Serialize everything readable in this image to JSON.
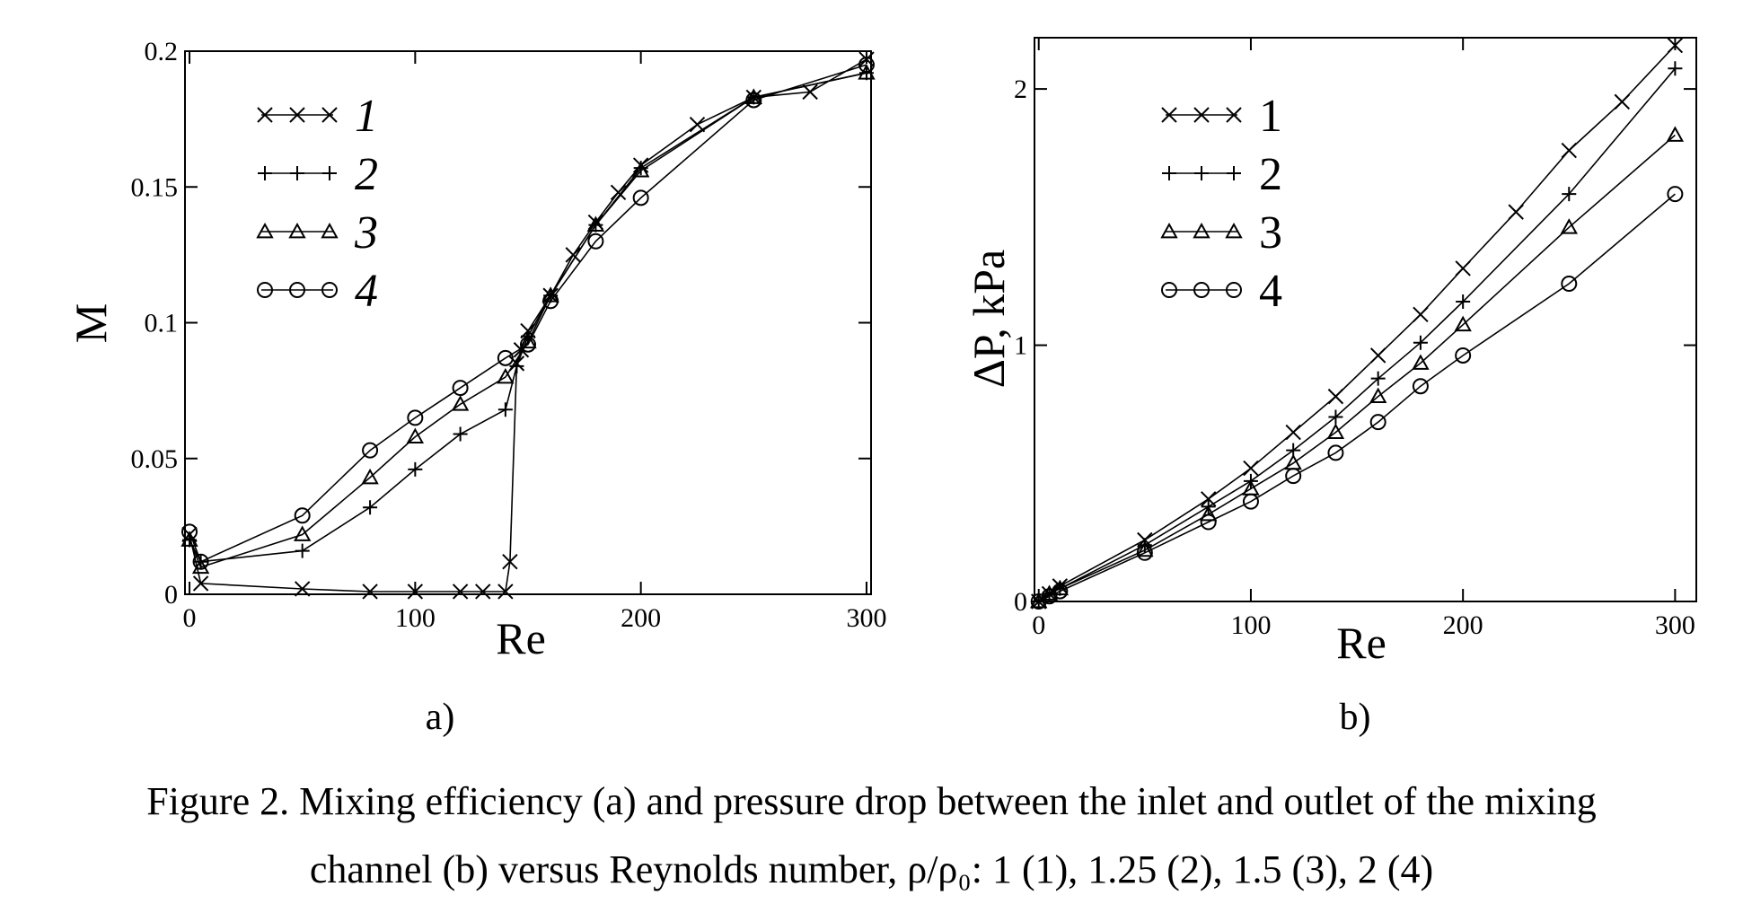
{
  "panel_labels": {
    "a": "a)",
    "b": "b)"
  },
  "caption": {
    "line1": "Figure 2. Mixing efficiency (a) and pressure drop between the inlet and outlet of the mixing",
    "line2": "channel (b) versus Reynolds number, ρ/ρ₀: 1 (1), 1.25 (2), 1.5 (3), 2 (4)"
  },
  "chart_data": [
    {
      "type": "line",
      "panel": "a",
      "title": "",
      "xlabel": "Re",
      "ylabel": "M",
      "xlim": [
        -2,
        302
      ],
      "ylim": [
        0,
        0.2
      ],
      "x_ticks": [
        0,
        100,
        200,
        300
      ],
      "x_tick_labels": [
        "0",
        "100",
        "200",
        "300"
      ],
      "y_ticks": [
        0,
        0.05,
        0.1,
        0.15,
        0.2
      ],
      "y_tick_labels": [
        "0",
        "0.05",
        "0.1",
        "0.15",
        "0.2"
      ],
      "grid": false,
      "legend_position": "top-left",
      "series": [
        {
          "name": "1",
          "marker": "x",
          "x": [
            0,
            5,
            50,
            80,
            100,
            120,
            130,
            140,
            142,
            145,
            147,
            150,
            160,
            170,
            180,
            190,
            200,
            225,
            250,
            275,
            300
          ],
          "y": [
            0.022,
            0.004,
            0.002,
            0.001,
            0.001,
            0.001,
            0.001,
            0.001,
            0.012,
            0.085,
            0.09,
            0.097,
            0.11,
            0.125,
            0.137,
            0.148,
            0.158,
            0.173,
            0.183,
            0.185,
            0.197
          ]
        },
        {
          "name": "2",
          "marker": "plus",
          "x": [
            0,
            5,
            50,
            80,
            100,
            120,
            140,
            145,
            150,
            160,
            180,
            200,
            250,
            300
          ],
          "y": [
            0.02,
            0.012,
            0.016,
            0.032,
            0.046,
            0.059,
            0.068,
            0.084,
            0.095,
            0.11,
            0.136,
            0.157,
            0.183,
            0.192
          ]
        },
        {
          "name": "3",
          "marker": "triangle",
          "x": [
            0,
            5,
            50,
            80,
            100,
            120,
            140,
            150,
            160,
            180,
            200,
            250,
            300
          ],
          "y": [
            0.02,
            0.01,
            0.022,
            0.043,
            0.058,
            0.07,
            0.08,
            0.093,
            0.11,
            0.136,
            0.156,
            0.183,
            0.192
          ]
        },
        {
          "name": "4",
          "marker": "circle",
          "x": [
            0,
            5,
            50,
            80,
            100,
            120,
            140,
            150,
            160,
            180,
            200,
            250,
            300
          ],
          "y": [
            0.023,
            0.012,
            0.029,
            0.053,
            0.065,
            0.076,
            0.087,
            0.092,
            0.108,
            0.13,
            0.146,
            0.182,
            0.195
          ]
        }
      ]
    },
    {
      "type": "line",
      "panel": "b",
      "title": "",
      "xlabel": "Re",
      "ylabel": "ΔP, kPa",
      "xlim": [
        -2,
        310
      ],
      "ylim": [
        0,
        2.2
      ],
      "x_ticks": [
        0,
        100,
        200,
        300
      ],
      "x_tick_labels": [
        "0",
        "100",
        "200",
        "300"
      ],
      "y_ticks": [
        0,
        1,
        2
      ],
      "y_tick_labels": [
        "0",
        "1",
        "2"
      ],
      "grid": false,
      "legend_position": "top-left",
      "series": [
        {
          "name": "1",
          "marker": "x",
          "x": [
            0,
            5,
            10,
            50,
            80,
            100,
            120,
            140,
            160,
            180,
            200,
            225,
            250,
            275,
            300
          ],
          "y": [
            0,
            0.03,
            0.06,
            0.24,
            0.4,
            0.52,
            0.66,
            0.8,
            0.96,
            1.12,
            1.3,
            1.52,
            1.76,
            1.95,
            2.17
          ]
        },
        {
          "name": "2",
          "marker": "plus",
          "x": [
            0,
            5,
            10,
            50,
            80,
            100,
            120,
            140,
            160,
            180,
            200,
            250,
            300
          ],
          "y": [
            0,
            0.03,
            0.05,
            0.22,
            0.37,
            0.47,
            0.59,
            0.72,
            0.87,
            1.01,
            1.17,
            1.59,
            2.08
          ]
        },
        {
          "name": "3",
          "marker": "triangle",
          "x": [
            0,
            5,
            10,
            50,
            80,
            100,
            120,
            140,
            160,
            180,
            200,
            250,
            300
          ],
          "y": [
            0,
            0.03,
            0.05,
            0.2,
            0.34,
            0.44,
            0.54,
            0.66,
            0.8,
            0.93,
            1.08,
            1.46,
            1.82
          ]
        },
        {
          "name": "4",
          "marker": "circle",
          "x": [
            0,
            5,
            10,
            50,
            80,
            100,
            120,
            140,
            160,
            180,
            200,
            250,
            300
          ],
          "y": [
            0,
            0.02,
            0.04,
            0.19,
            0.31,
            0.39,
            0.49,
            0.58,
            0.7,
            0.84,
            0.96,
            1.24,
            1.59
          ]
        }
      ]
    }
  ]
}
